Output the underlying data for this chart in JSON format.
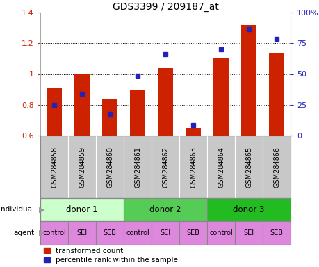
{
  "title": "GDS3399 / 209187_at",
  "samples": [
    "GSM284858",
    "GSM284859",
    "GSM284860",
    "GSM284861",
    "GSM284862",
    "GSM284863",
    "GSM284864",
    "GSM284865",
    "GSM284866"
  ],
  "red_bars": [
    0.91,
    1.0,
    0.84,
    0.9,
    1.04,
    0.65,
    1.1,
    1.32,
    1.14
  ],
  "blue_dots": [
    0.8,
    0.87,
    0.74,
    0.99,
    1.13,
    0.67,
    1.16,
    1.29,
    1.23
  ],
  "ylim": [
    0.6,
    1.4
  ],
  "y2lim": [
    0,
    100
  ],
  "yticks": [
    0.6,
    0.8,
    1.0,
    1.2,
    1.4
  ],
  "ytick_labels": [
    "0.6",
    "0.8",
    "1",
    "1.2",
    "1.4"
  ],
  "y2ticks": [
    0,
    25,
    50,
    75,
    100
  ],
  "y2ticklabels": [
    "0",
    "25",
    "50",
    "75",
    "100%"
  ],
  "bar_color": "#cc2200",
  "dot_color": "#2222bb",
  "bar_bottom": 0.6,
  "bg_gsm": "#c8c8c8",
  "individual_groups": [
    {
      "label": "donor 1",
      "span": [
        0,
        3
      ],
      "color": "#ccffcc"
    },
    {
      "label": "donor 2",
      "span": [
        3,
        6
      ],
      "color": "#55cc55"
    },
    {
      "label": "donor 3",
      "span": [
        6,
        9
      ],
      "color": "#22bb22"
    }
  ],
  "agent_labels": [
    "control",
    "SEI",
    "SEB",
    "control",
    "SEI",
    "SEB",
    "control",
    "SEI",
    "SEB"
  ],
  "agent_color": "#dd88dd",
  "legend_red": "transformed count",
  "legend_blue": "percentile rank within the sample",
  "left_label_individual": "individual",
  "left_label_agent": "agent"
}
